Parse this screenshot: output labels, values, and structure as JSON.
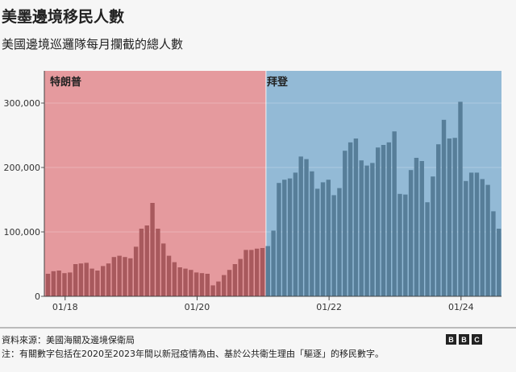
{
  "header": {
    "title": "美墨邊境移民人數",
    "subtitle": "美國邊境巡邏隊每月攔截的總人數"
  },
  "footer": {
    "source": "資料來源：美國海關及邊境保衛局",
    "note": "注：有關數字包括在2020至2023年間以新冠疫情為由、基於公共衛生理由「驅逐」的移民數字。",
    "logo": [
      "B",
      "B",
      "C"
    ]
  },
  "colors": {
    "trump_bg": "#e59a9e",
    "trump_bar": "#a8595d",
    "biden_bg": "#93bad6",
    "biden_bar": "#577e99"
  },
  "chart_data": {
    "type": "bar",
    "title": "美墨邊境移民人數",
    "subtitle": "美國邊境巡邏隊每月攔截的總人數",
    "ylim": [
      0,
      320000
    ],
    "yticks": [
      0,
      100000,
      200000,
      300000
    ],
    "ytick_labels": [
      "0",
      "100,000",
      "200,000",
      "300,000"
    ],
    "xtick_labels": [
      {
        "label": "01/18",
        "month": "2018-01"
      },
      {
        "label": "01/20",
        "month": "2020-01"
      },
      {
        "label": "01/22",
        "month": "2022-01"
      },
      {
        "label": "01/24",
        "month": "2024-01"
      }
    ],
    "grid": true,
    "periods": [
      {
        "name": "特朗普",
        "start": "2017-09",
        "end": "2020-12",
        "values": [
          35000,
          39000,
          40000,
          36000,
          37000,
          50000,
          51000,
          52000,
          43000,
          40000,
          47000,
          51000,
          61000,
          63000,
          61000,
          59000,
          77000,
          105000,
          110000,
          145000,
          105000,
          82000,
          63000,
          53000,
          45000,
          43000,
          41000,
          37000,
          36000,
          35000,
          17000,
          23000,
          33000,
          41000,
          50000,
          58000,
          72000,
          72000,
          74000,
          75000
        ]
      },
      {
        "name": "拜登",
        "start": "2021-01",
        "end": "2024-07",
        "values": [
          78000,
          102000,
          176000,
          181000,
          183000,
          192000,
          217000,
          213000,
          194000,
          167000,
          177000,
          181000,
          157000,
          168000,
          226000,
          239000,
          245000,
          211000,
          203000,
          207000,
          231000,
          235000,
          239000,
          256000,
          159000,
          158000,
          196000,
          215000,
          210000,
          146000,
          186000,
          236000,
          274000,
          245000,
          246000,
          302000,
          179000,
          192000,
          192000,
          182000,
          173000,
          132000,
          105000
        ]
      }
    ]
  }
}
